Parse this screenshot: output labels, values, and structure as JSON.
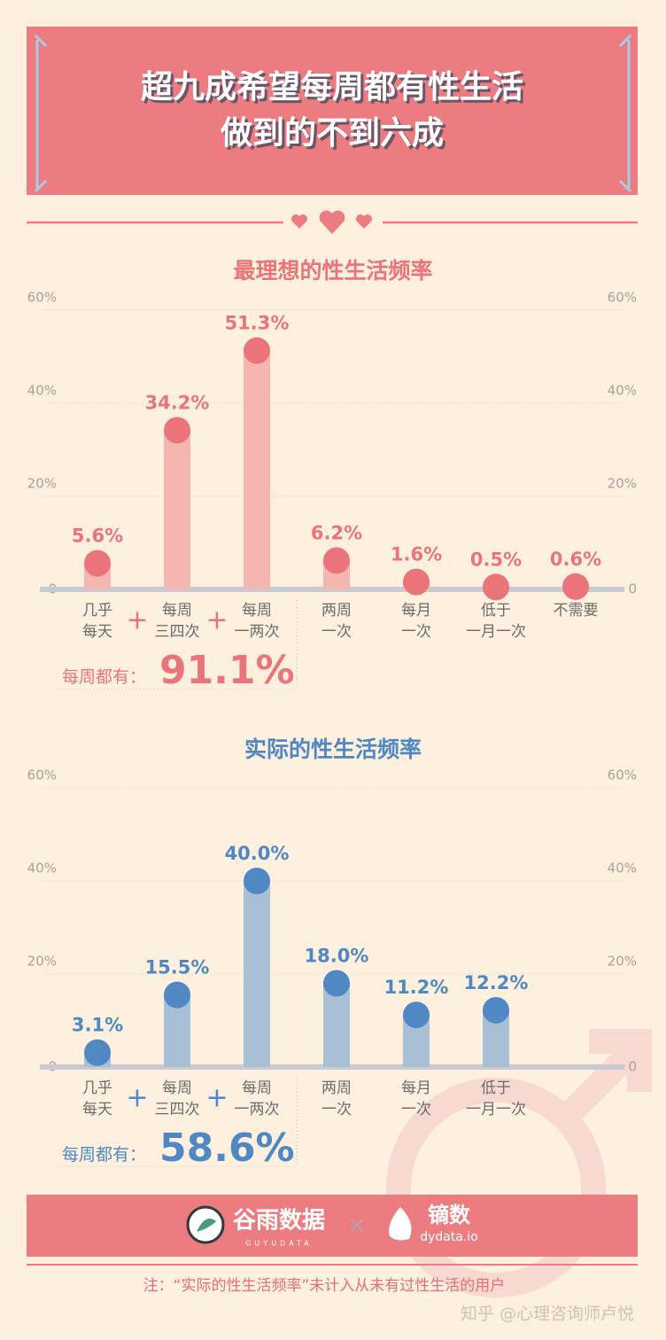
{
  "header": {
    "title_lines": [
      "超九成希望每周都有性生活",
      "做到的不到六成"
    ]
  },
  "chart_data": [
    {
      "type": "bar",
      "title": "最理想的性生活频率",
      "categories": [
        "几乎\n每天",
        "每周\n三四次",
        "每周\n一两次",
        "两周\n一次",
        "每月\n一次",
        "低于\n一月一次",
        "不需要"
      ],
      "values": [
        5.6,
        34.2,
        51.3,
        6.2,
        1.6,
        0.5,
        0.6
      ],
      "value_labels": [
        "5.6%",
        "34.2%",
        "51.3%",
        "6.2%",
        "1.6%",
        "0.5%",
        "0.6%"
      ],
      "color": "#ea7479",
      "bar_color": "#f5b5b1",
      "ylim": [
        0,
        60
      ],
      "yticks": [
        0,
        {
          "value": 20,
          "label": "20%"
        },
        {
          "value": 40,
          "label": "40%"
        },
        {
          "value": 60,
          "label": "60%"
        }
      ],
      "grid": true,
      "plus": "+",
      "summary_label": "每周都有：",
      "summary_value": "91.1%"
    },
    {
      "type": "bar",
      "title": "实际的性生活频率",
      "categories": [
        "几乎\n每天",
        "每周\n三四次",
        "每周\n一两次",
        "两周\n一次",
        "每月\n一次",
        "低于\n一月一次"
      ],
      "values": [
        3.1,
        15.5,
        40.0,
        18.0,
        11.2,
        12.2
      ],
      "value_labels": [
        "3.1%",
        "15.5%",
        "40.0%",
        "18.0%",
        "11.2%",
        "12.2%"
      ],
      "color": "#4f88c3",
      "bar_color": "#a9bfd4",
      "ylim": [
        0,
        60
      ],
      "yticks": [
        0,
        {
          "value": 20,
          "label": "20%"
        },
        {
          "value": 40,
          "label": "40%"
        },
        {
          "value": 60,
          "label": "60%"
        }
      ],
      "grid": true,
      "plus": "+",
      "summary_label": "每周都有：",
      "summary_value": "58.6%"
    }
  ],
  "footer": {
    "brand1": "谷雨数据",
    "brand1_sub": "GUYUDATA",
    "times": "×",
    "brand2": "镝数",
    "brand2_sub": "dydata.io",
    "note": "注：“实际的性生活频率”未计入从未有过性生活的用户",
    "watermark": "知乎 @心理咨询师卢悦"
  }
}
